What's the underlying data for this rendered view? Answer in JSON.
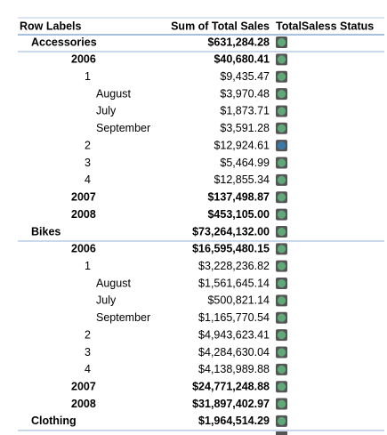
{
  "table": {
    "header": {
      "row_labels": "Row Labels",
      "sum": "Sum of Total Sales",
      "status": "TotalSaless Status"
    },
    "rows": [
      {
        "label": "Accessories",
        "value": "$631,284.28",
        "level": 0,
        "bold": true,
        "status_color": "#5fa878"
      },
      {
        "label": "2006",
        "value": "$40,680.41",
        "level": 1,
        "bold": true,
        "status_color": "#5fa878"
      },
      {
        "label": "1",
        "value": "$9,435.47",
        "level": 2,
        "bold": false,
        "status_color": "#5fa878"
      },
      {
        "label": "August",
        "value": "$3,970.48",
        "level": 3,
        "bold": false,
        "status_color": "#5fa878"
      },
      {
        "label": "July",
        "value": "$1,873.71",
        "level": 3,
        "bold": false,
        "status_color": "#5fa878"
      },
      {
        "label": "September",
        "value": "$3,591.28",
        "level": 3,
        "bold": false,
        "status_color": "#5fa878"
      },
      {
        "label": "2",
        "value": "$12,924.61",
        "level": 2,
        "bold": false,
        "status_color": "#3a7aa8"
      },
      {
        "label": "3",
        "value": "$5,464.99",
        "level": 2,
        "bold": false,
        "status_color": "#5fa878"
      },
      {
        "label": "4",
        "value": "$12,855.34",
        "level": 2,
        "bold": false,
        "status_color": "#5fa878"
      },
      {
        "label": "2007",
        "value": "$137,498.87",
        "level": 1,
        "bold": true,
        "status_color": "#5fa878"
      },
      {
        "label": "2008",
        "value": "$453,105.00",
        "level": 1,
        "bold": true,
        "status_color": "#5fa878"
      },
      {
        "label": "Bikes",
        "value": "$73,264,132.00",
        "level": 0,
        "bold": true,
        "status_color": "#5fa878"
      },
      {
        "label": "2006",
        "value": "$16,595,480.15",
        "level": 1,
        "bold": true,
        "status_color": "#5fa878"
      },
      {
        "label": "1",
        "value": "$3,228,236.82",
        "level": 2,
        "bold": false,
        "status_color": "#5fa878"
      },
      {
        "label": "August",
        "value": "$1,561,645.14",
        "level": 3,
        "bold": false,
        "status_color": "#5fa878"
      },
      {
        "label": "July",
        "value": "$500,821.14",
        "level": 3,
        "bold": false,
        "status_color": "#5fa878"
      },
      {
        "label": "September",
        "value": "$1,165,770.54",
        "level": 3,
        "bold": false,
        "status_color": "#5fa878"
      },
      {
        "label": "2",
        "value": "$4,943,623.41",
        "level": 2,
        "bold": false,
        "status_color": "#5fa878"
      },
      {
        "label": "3",
        "value": "$4,284,630.04",
        "level": 2,
        "bold": false,
        "status_color": "#5fa878"
      },
      {
        "label": "4",
        "value": "$4,138,989.88",
        "level": 2,
        "bold": false,
        "status_color": "#5fa878"
      },
      {
        "label": "2007",
        "value": "$24,771,248.88",
        "level": 1,
        "bold": true,
        "status_color": "#5fa878"
      },
      {
        "label": "2008",
        "value": "$31,897,402.97",
        "level": 1,
        "bold": true,
        "status_color": "#5fa878"
      },
      {
        "label": "Clothing",
        "value": "$1,964,514.29",
        "level": 0,
        "bold": true,
        "status_color": "#5fa878"
      }
    ]
  }
}
